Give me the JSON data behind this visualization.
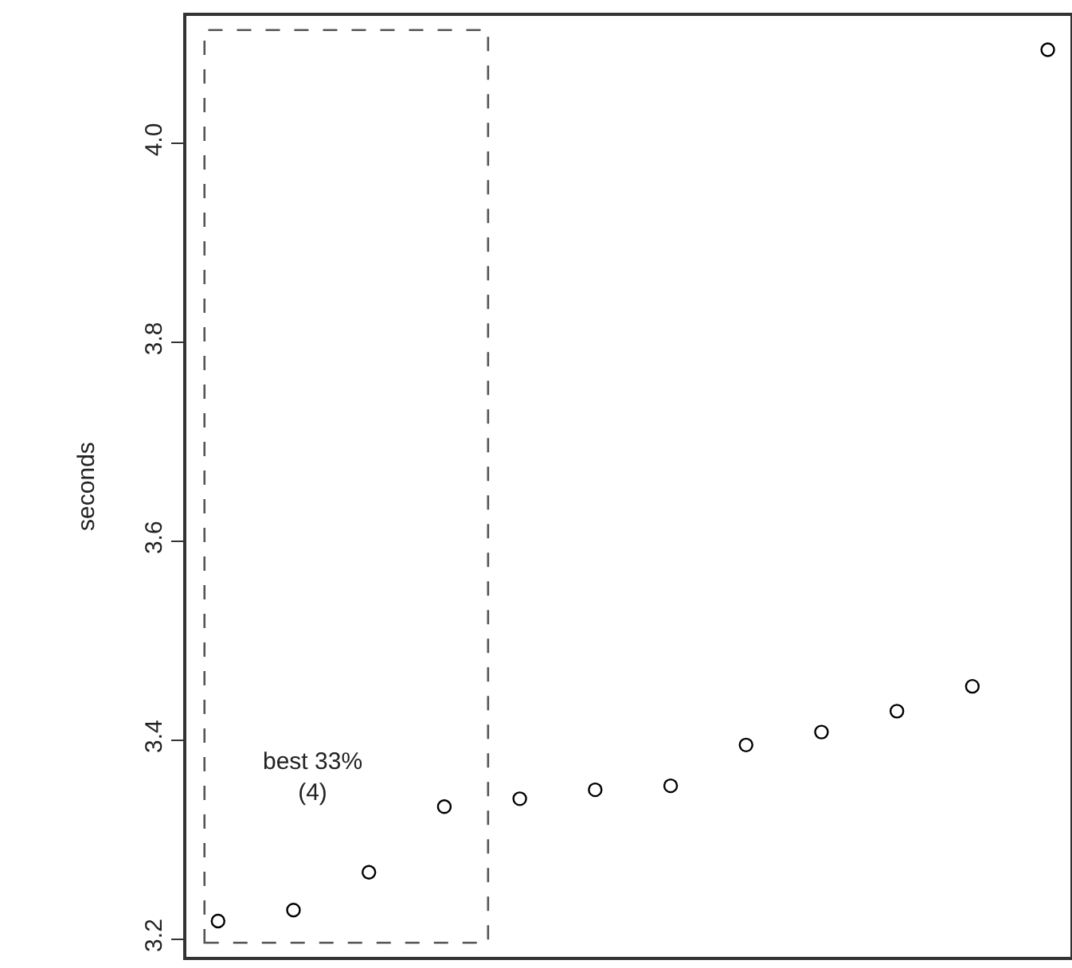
{
  "chart_data": {
    "type": "scatter",
    "ylabel": "seconds",
    "categories": [
      null,
      null,
      null,
      null,
      null,
      null,
      null,
      null,
      null,
      null,
      null,
      null
    ],
    "values": [
      3.218,
      3.229,
      3.267,
      3.333,
      3.341,
      3.35,
      3.354,
      3.395,
      3.408,
      3.429,
      3.454,
      4.094
    ],
    "color": "#000000",
    "marker": "circle",
    "ylim": [
      3.182,
      4.128
    ],
    "yticks": [
      3.2,
      3.4,
      3.6,
      3.8,
      {
        "value": 4,
        "label": "4.0"
      }
    ],
    "tick_labels": "y",
    "grid": false,
    "annotations": [
      "best 33%\n(4)"
    ]
  }
}
